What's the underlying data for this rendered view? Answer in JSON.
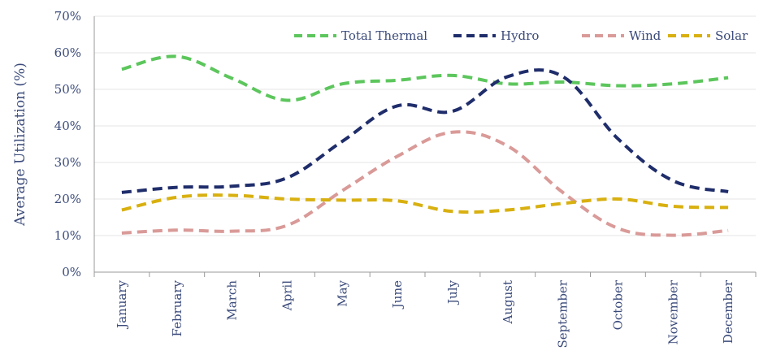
{
  "chart_data": {
    "type": "line",
    "title": "",
    "xlabel": "",
    "ylabel": "Average Utilization (%)",
    "ylim": [
      0,
      70
    ],
    "y_ticks": [
      "0%",
      "10%",
      "20%",
      "30%",
      "40%",
      "50%",
      "60%",
      "70%"
    ],
    "y_tick_values": [
      0,
      10,
      20,
      30,
      40,
      50,
      60,
      70
    ],
    "grid": true,
    "legend_position": "top-right",
    "categories": [
      "January",
      "February",
      "March",
      "April",
      "May",
      "June",
      "July",
      "August",
      "September",
      "October",
      "November",
      "December"
    ],
    "series": [
      {
        "name": "Total Thermal",
        "color": "#5cc65c",
        "values": [
          55.5,
          59,
          53,
          47,
          51.5,
          52.5,
          53.8,
          51.5,
          52,
          51,
          51.5,
          53.2
        ]
      },
      {
        "name": "Hydro",
        "color": "#1f2d6b",
        "values": [
          21.8,
          23.2,
          23.5,
          25.8,
          35.8,
          45.5,
          44,
          53.5,
          53.5,
          36.5,
          25,
          22
        ]
      },
      {
        "name": "Wind",
        "color": "#d99a98",
        "values": [
          10.7,
          11.5,
          11.2,
          12.8,
          22.3,
          31.7,
          38.3,
          34.5,
          21.8,
          12,
          10.1,
          11.4
        ]
      },
      {
        "name": "Solar",
        "color": "#d8b010",
        "values": [
          17,
          20.5,
          21,
          20,
          19.7,
          19.5,
          16.6,
          17,
          18.8,
          20,
          18,
          17.7
        ]
      }
    ]
  }
}
